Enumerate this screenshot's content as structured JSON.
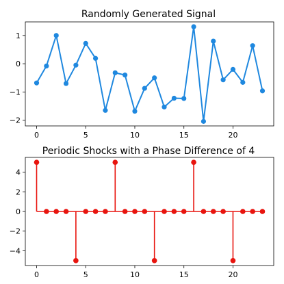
{
  "chart_data": [
    {
      "type": "line",
      "title": "Randomly Generated Signal",
      "xlabel": "",
      "ylabel": "",
      "x": [
        0,
        1,
        2,
        3,
        4,
        5,
        6,
        7,
        8,
        9,
        10,
        11,
        12,
        13,
        14,
        15,
        16,
        17,
        18,
        19,
        20,
        21,
        22,
        23
      ],
      "series": [
        {
          "values": [
            -0.68,
            -0.08,
            1.0,
            -0.7,
            -0.05,
            0.72,
            0.19,
            -1.65,
            -0.32,
            -0.4,
            -1.68,
            -0.87,
            -0.5,
            -1.53,
            -1.22,
            -1.23,
            1.31,
            -2.04,
            0.8,
            -0.57,
            -0.2,
            -0.66,
            0.64,
            -0.96
          ],
          "color": "#1f88df",
          "marker": "circle"
        }
      ],
      "xlim": [
        -1.15,
        24.15
      ],
      "ylim": [
        -2.2,
        1.48
      ],
      "xticks": [
        0,
        5,
        10,
        15,
        20
      ],
      "yticks": [
        -2,
        -1,
        0,
        1
      ],
      "xtick_labels": [
        "0",
        "5",
        "10",
        "15",
        "20"
      ],
      "ytick_labels": [
        "−2",
        "−1",
        "0",
        "1"
      ],
      "grid": false
    },
    {
      "type": "stem",
      "title": "Periodic Shocks with a Phase Difference of 4",
      "xlabel": "",
      "ylabel": "",
      "x": [
        0,
        1,
        2,
        3,
        4,
        5,
        6,
        7,
        8,
        9,
        10,
        11,
        12,
        13,
        14,
        15,
        16,
        17,
        18,
        19,
        20,
        21,
        22,
        23
      ],
      "series": [
        {
          "values": [
            5,
            0,
            0,
            0,
            -5,
            0,
            0,
            0,
            5,
            0,
            0,
            0,
            -5,
            0,
            0,
            0,
            5,
            0,
            0,
            0,
            -5,
            0,
            0,
            0
          ],
          "color": "#e8140e",
          "marker": "circle",
          "baseline": 0
        }
      ],
      "xlim": [
        -1.15,
        24.15
      ],
      "ylim": [
        -5.5,
        5.5
      ],
      "xticks": [
        0,
        5,
        10,
        15,
        20
      ],
      "yticks": [
        -4,
        -2,
        0,
        2,
        4
      ],
      "xtick_labels": [
        "0",
        "5",
        "10",
        "15",
        "20"
      ],
      "ytick_labels": [
        "−4",
        "−2",
        "0",
        "2",
        "4"
      ],
      "grid": false
    }
  ]
}
